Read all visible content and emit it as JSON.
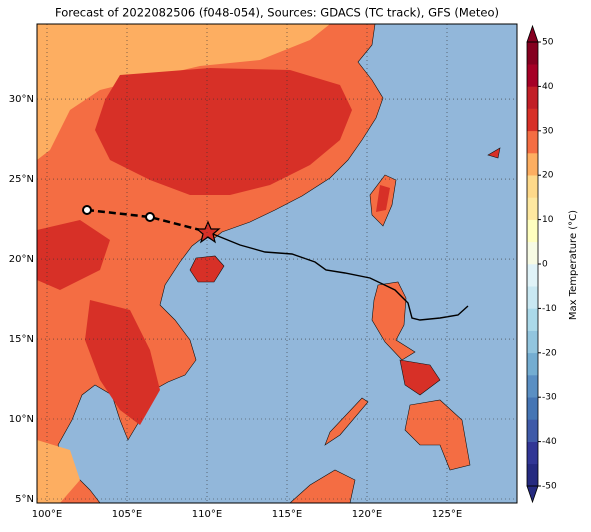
{
  "map": {
    "title": "Forecast of 2022082506 (f048-054), Sources: GDACS (TC track), GFS (Meteo)",
    "lon_range": [
      99.375,
      129.375
    ],
    "lat_range": [
      4.75,
      34.69
    ],
    "lon_ticks": [
      {
        "value": 100,
        "label": "100°E"
      },
      {
        "value": 105,
        "label": "105°E"
      },
      {
        "value": 110,
        "label": "110°E"
      },
      {
        "value": 115,
        "label": "115°E"
      },
      {
        "value": 120,
        "label": "120°E"
      },
      {
        "value": 125,
        "label": "125°E"
      }
    ],
    "lat_ticks": [
      {
        "value": 5,
        "label": "5°N"
      },
      {
        "value": 10,
        "label": "10°N"
      },
      {
        "value": 15,
        "label": "15°N"
      },
      {
        "value": 20,
        "label": "20°N"
      },
      {
        "value": 25,
        "label": "25°N"
      },
      {
        "value": 30,
        "label": "30°N"
      }
    ],
    "grid": true,
    "colorbar": {
      "label": "Max Temperature (°C)",
      "range": [
        -50,
        50
      ],
      "ticks": [
        50,
        40,
        30,
        20,
        10,
        0,
        -10,
        -20,
        -30,
        -40,
        -50
      ],
      "colors": [
        "#252a80",
        "#313695",
        "#3f5aa8",
        "#4575b4",
        "#5a8fc3",
        "#74add1",
        "#92c5de",
        "#abd9e9",
        "#c9e8f2",
        "#e0f3f8",
        "#f7fbe4",
        "#ffffbf",
        "#fee8a0",
        "#fed98a",
        "#fdae61",
        "#f46d43",
        "#d73027",
        "#c21f27",
        "#a50026",
        "#850020"
      ]
    }
  }
}
